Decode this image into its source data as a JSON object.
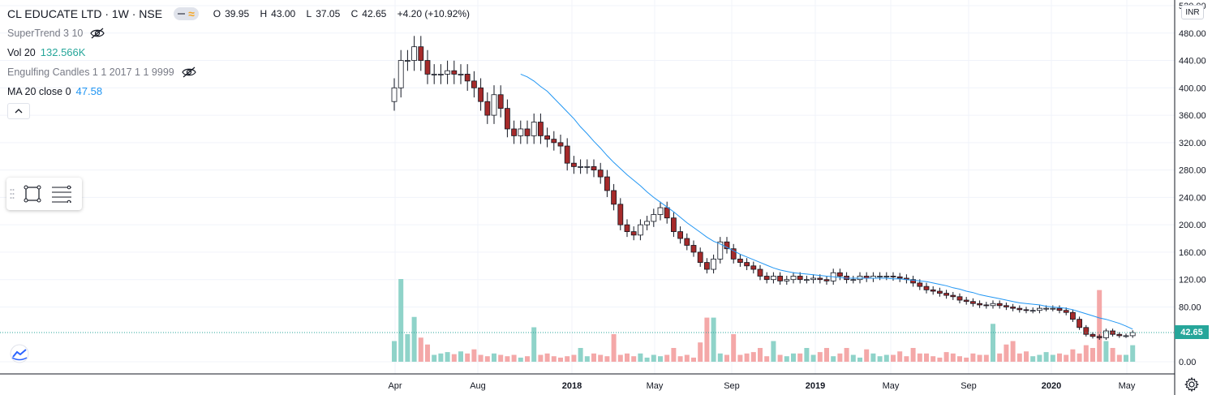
{
  "header": {
    "symbol": "CL EDUCATE LTD · 1W · NSE",
    "ohlc": {
      "o_label": "O",
      "o_value": "39.95",
      "h_label": "H",
      "h_value": "43.00",
      "l_label": "L",
      "l_value": "37.05",
      "c_label": "C",
      "c_value": "42.65",
      "change": "+4.20 (+10.92%)"
    }
  },
  "indicators": [
    {
      "name": "SuperTrend 3 10",
      "value": "",
      "hidden": true
    },
    {
      "name": "Vol 20",
      "value": "132.566K",
      "hidden": false
    },
    {
      "name": "Engulfing Candles 1 1 2017 1 1 9999",
      "value": "",
      "hidden": true
    },
    {
      "name": "MA 20 close 0",
      "value": "47.58",
      "hidden": false
    }
  ],
  "price_axis": {
    "currency": "INR",
    "current_price": "42.65",
    "ticks": [
      "520.00",
      "480.00",
      "440.00",
      "400.00",
      "360.00",
      "320.00",
      "280.00",
      "240.00",
      "200.00",
      "160.00",
      "120.00",
      "80.00",
      "0.00"
    ]
  },
  "time_axis": {
    "labels": [
      "Apr",
      "Aug",
      "2018",
      "May",
      "Sep",
      "2019",
      "May",
      "Sep",
      "2020",
      "May"
    ]
  },
  "icons": {
    "logo": "tradingview-logo-icon",
    "settings": "gear-icon",
    "collapse": "chevron-up-icon",
    "eye_hidden": "eye-off-icon",
    "rect_tool": "rectangle-tool-icon",
    "lines_tool": "horizontal-lines-tool-icon"
  },
  "colors": {
    "up": "#26a69a",
    "down": "#ef5350",
    "candle_up_body": "#ffffff",
    "candle_down_body": "#a52a2a",
    "ma_line": "#2196f3",
    "vol_up": "#8fd3c9",
    "vol_down": "#f4a8a8",
    "grid": "#f0f3fa"
  },
  "chart_data": {
    "type": "candlestick",
    "interval": "1W",
    "ylim": [
      0,
      520
    ],
    "closes": [
      400,
      440,
      440,
      460,
      440,
      420,
      420,
      420,
      425,
      420,
      420,
      410,
      400,
      380,
      360,
      390,
      370,
      340,
      330,
      340,
      330,
      350,
      330,
      325,
      320,
      315,
      290,
      285,
      285,
      285,
      280,
      270,
      250,
      230,
      200,
      190,
      185,
      200,
      205,
      215,
      225,
      210,
      190,
      180,
      170,
      160,
      145,
      135,
      150,
      175,
      165,
      150,
      145,
      140,
      135,
      125,
      120,
      125,
      118,
      120,
      125,
      120,
      120,
      122,
      120,
      118,
      130,
      125,
      120,
      120,
      125,
      122,
      125,
      125,
      125,
      124,
      122,
      120,
      115,
      110,
      105,
      103,
      100,
      97,
      95,
      90,
      88,
      85,
      83,
      82,
      85,
      82,
      80,
      78,
      76,
      75,
      75,
      78,
      78,
      78,
      75,
      72,
      62,
      50,
      40,
      37,
      35,
      45,
      40,
      38,
      38,
      42.65
    ],
    "ma20": [
      null,
      null,
      null,
      null,
      null,
      null,
      null,
      null,
      null,
      null,
      null,
      null,
      null,
      null,
      null,
      null,
      null,
      null,
      null,
      420,
      416,
      410,
      402,
      395,
      385,
      375,
      365,
      355,
      343,
      333,
      322,
      312,
      301,
      291,
      282,
      273,
      265,
      257,
      248,
      240,
      233,
      226,
      219,
      211,
      203,
      196,
      189,
      182,
      176,
      172,
      167,
      162,
      157,
      153,
      149,
      145,
      141,
      137,
      134,
      132,
      130,
      129,
      128,
      127,
      126,
      125,
      124,
      123,
      122,
      122,
      122,
      122,
      122,
      122,
      122,
      121,
      121,
      120,
      119,
      118,
      117,
      115,
      113,
      111,
      108,
      106,
      103,
      101,
      98,
      96,
      94,
      92,
      90,
      88,
      86,
      85,
      84,
      83,
      81,
      80,
      79,
      78,
      76,
      73,
      70,
      67,
      64,
      62,
      59,
      56,
      52,
      47.58
    ],
    "volume": [
      30,
      120,
      40,
      65,
      35,
      25,
      10,
      12,
      14,
      11,
      15,
      12,
      18,
      10,
      8,
      12,
      10,
      8,
      10,
      6,
      8,
      50,
      10,
      12,
      8,
      6,
      8,
      10,
      20,
      8,
      12,
      10,
      8,
      40,
      10,
      12,
      8,
      12,
      6,
      10,
      8,
      10,
      20,
      8,
      10,
      6,
      28,
      64,
      64,
      12,
      10,
      40,
      10,
      12,
      14,
      20,
      8,
      30,
      10,
      8,
      12,
      12,
      20,
      10,
      14,
      20,
      8,
      12,
      20,
      10,
      6,
      18,
      12,
      8,
      10,
      10,
      15,
      8,
      20,
      12,
      12,
      8,
      6,
      14,
      12,
      8,
      6,
      12,
      10,
      10,
      55,
      12,
      25,
      30,
      12,
      15,
      8,
      10,
      14,
      10,
      12,
      10,
      18,
      12,
      24,
      20,
      104,
      30,
      20,
      10,
      10,
      24
    ]
  }
}
